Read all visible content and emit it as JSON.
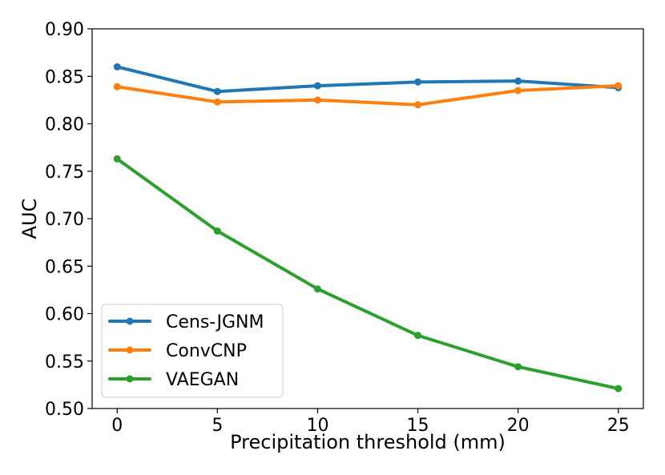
{
  "chart_data": {
    "type": "line",
    "title": "",
    "xlabel": "Precipitation threshold (mm)",
    "ylabel": "AUC",
    "x": [
      0,
      5,
      10,
      15,
      20,
      25
    ],
    "xticks": [
      0,
      5,
      10,
      15,
      20,
      25
    ],
    "yticks": [
      0.5,
      0.55,
      0.6,
      0.65,
      0.7,
      0.75,
      0.8,
      0.85,
      0.9
    ],
    "xlim": [
      -1.25,
      26.25
    ],
    "ylim": [
      0.5,
      0.9
    ],
    "grid": false,
    "legend_position": "lower-left",
    "series": [
      {
        "name": "Cens-JGNM",
        "color": "#1f77b4",
        "values": [
          0.86,
          0.834,
          0.84,
          0.844,
          0.845,
          0.838
        ]
      },
      {
        "name": "ConvCNP",
        "color": "#ff7f0e",
        "values": [
          0.839,
          0.823,
          0.825,
          0.82,
          0.835,
          0.84
        ]
      },
      {
        "name": "VAEGAN",
        "color": "#2ca02c",
        "values": [
          0.763,
          0.687,
          0.626,
          0.577,
          0.544,
          0.521
        ]
      }
    ]
  }
}
